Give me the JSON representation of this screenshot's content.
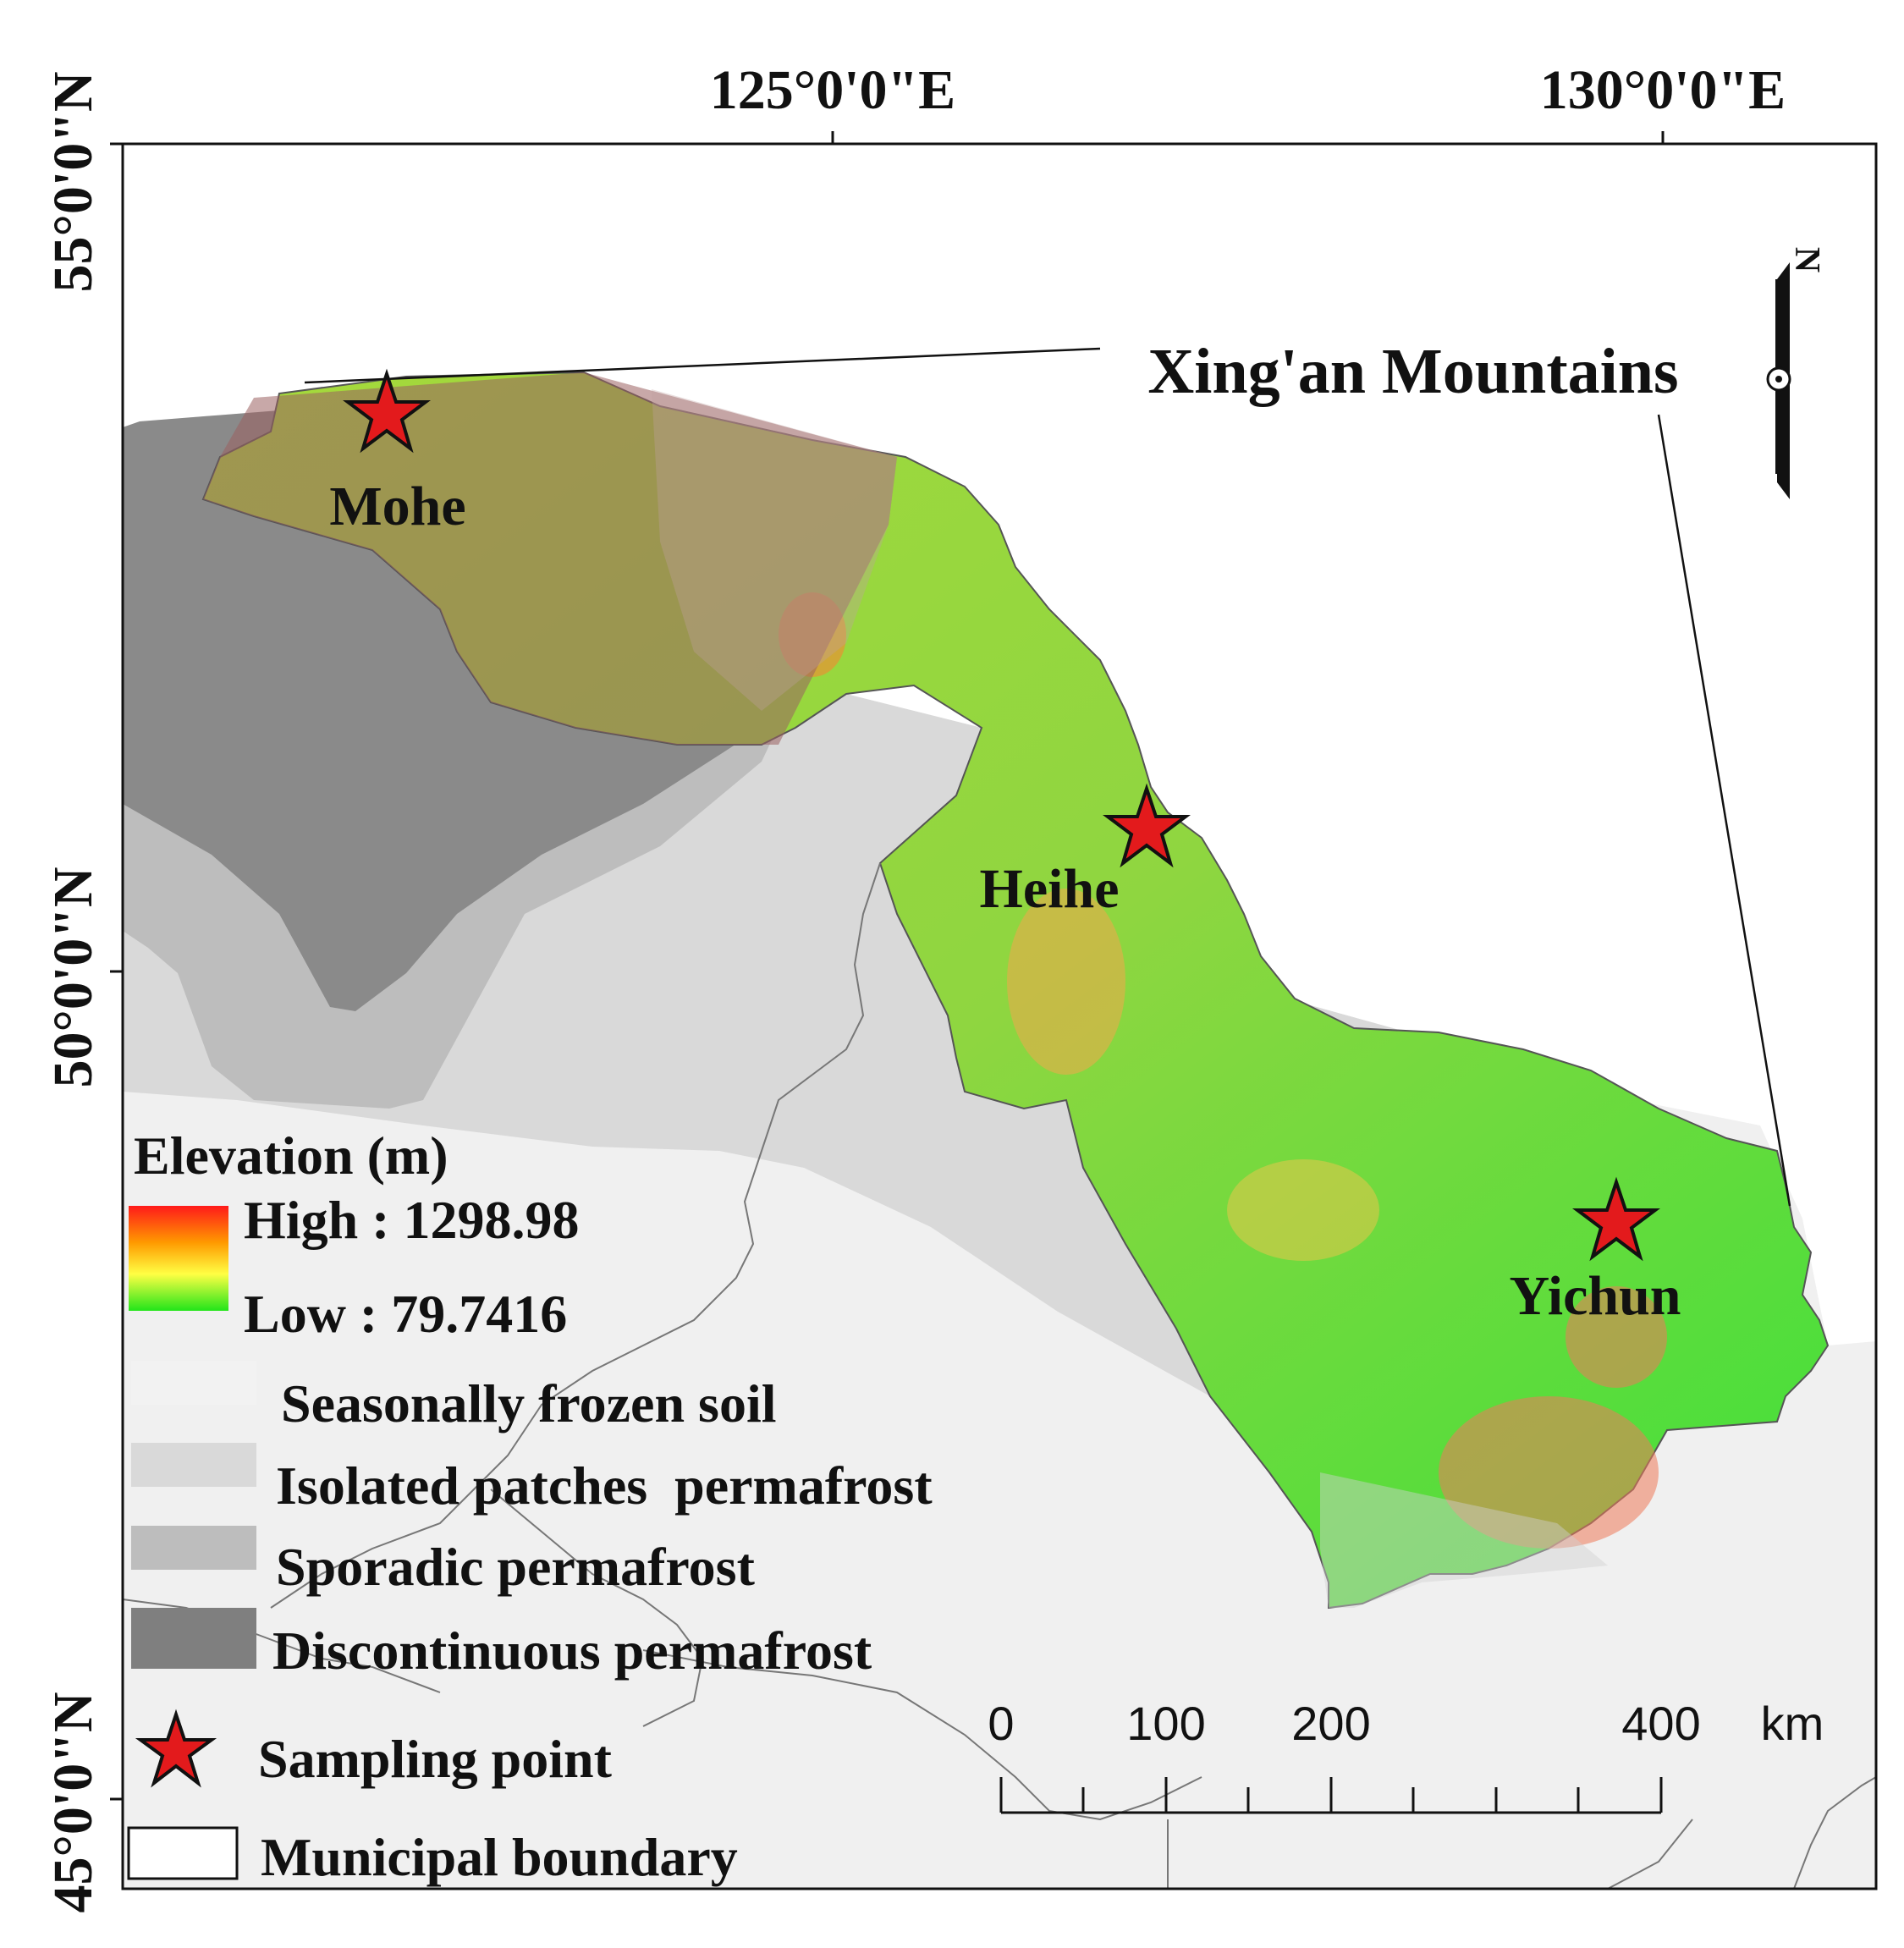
{
  "map": {
    "graticule": {
      "top_labels": [
        "125°0'0\"E",
        "130°0'0\"E"
      ],
      "left_labels": [
        "55°0'0\"N",
        "50°0'0\"N",
        "45°0'0\"N"
      ]
    },
    "region_label": "Xing'an Mountains",
    "north_arrow_letter": "N",
    "sampling_points": [
      {
        "name": "Mohe"
      },
      {
        "name": "Heihe"
      },
      {
        "name": "Yichun"
      }
    ],
    "legend": {
      "elevation_title": "Elevation (m)",
      "elevation_high": "High : 1298.98",
      "elevation_low": "Low : 79.7416",
      "elevation_high_value": 1298.98,
      "elevation_low_value": 79.7416,
      "gradient_colors": [
        "#ff1a1a",
        "#ff8c00",
        "#ffff44",
        "#22e51a"
      ],
      "classes": [
        {
          "label": "Seasonally frozen soil",
          "color": "#f0f0f0"
        },
        {
          "label": "Isolated patches  permafrost",
          "color": "#d9d9d9"
        },
        {
          "label": "Sporadic permafrost",
          "color": "#bdbdbd"
        },
        {
          "label": "Discontinuous permafrost",
          "color": "#8a8a8a"
        }
      ],
      "sampling_label": "Sampling point",
      "boundary_label": "Municipal boundary"
    },
    "scale_bar": {
      "labels": [
        "0",
        "100",
        "200",
        "400"
      ],
      "unit": "km"
    }
  }
}
